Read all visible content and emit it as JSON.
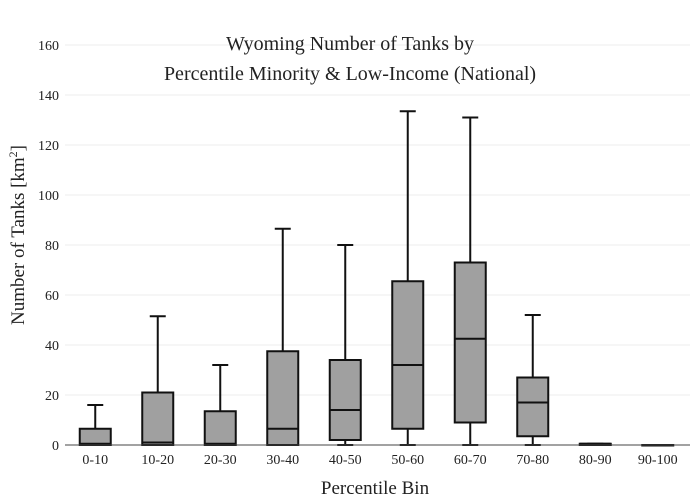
{
  "chart_data": {
    "type": "box",
    "title_line1": "Wyoming Number of Tanks by",
    "title_line2": "Percentile Minority & Low-Income (National)",
    "xlabel": "Percentile Bin",
    "ylabel_main": "Number of Tanks  [km",
    "ylabel_sup": "2",
    "ylabel_end": "]",
    "ylim": [
      0,
      160
    ],
    "yticks": [
      0,
      20,
      40,
      60,
      80,
      100,
      120,
      140,
      160
    ],
    "grid": true,
    "categories": [
      "0-10",
      "10-20",
      "20-30",
      "30-40",
      "40-50",
      "50-60",
      "60-70",
      "70-80",
      "80-90",
      "90-100"
    ],
    "boxes": [
      {
        "min": 0,
        "q1": 0,
        "median": 0.5,
        "q3": 6.5,
        "max": 16
      },
      {
        "min": 0,
        "q1": 0,
        "median": 1,
        "q3": 21,
        "max": 51.5
      },
      {
        "min": 0,
        "q1": 0,
        "median": 0.5,
        "q3": 13.5,
        "max": 32
      },
      {
        "min": 0,
        "q1": 0,
        "median": 6.5,
        "q3": 37.5,
        "max": 86.5
      },
      {
        "min": 0,
        "q1": 2,
        "median": 14,
        "q3": 34,
        "max": 80
      },
      {
        "min": 0,
        "q1": 6.5,
        "median": 32,
        "q3": 65.5,
        "max": 133.5
      },
      {
        "min": 0,
        "q1": 9,
        "median": 42.5,
        "q3": 73,
        "max": 131
      },
      {
        "min": 0,
        "q1": 3.5,
        "median": 17,
        "q3": 27,
        "max": 52
      },
      {
        "min": 0,
        "q1": 0,
        "median": 0.5,
        "q3": 0.5,
        "max": 0.5
      },
      {
        "min": 0,
        "q1": 0,
        "median": 0,
        "q3": 0,
        "max": 0
      }
    ]
  }
}
